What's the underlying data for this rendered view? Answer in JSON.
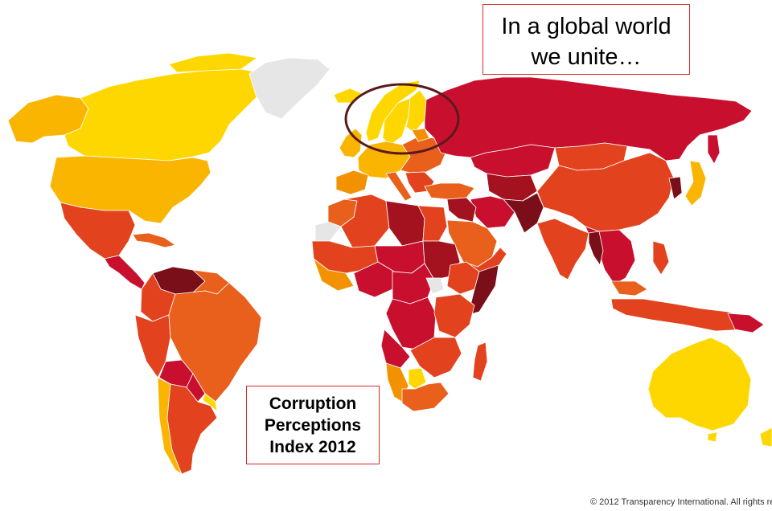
{
  "title_callout": {
    "line1": "In a global world",
    "line2": "we unite…"
  },
  "index_label": {
    "line1": "Corruption",
    "line2": "Perceptions",
    "line3": "Index 2012"
  },
  "copyright": "© 2012 Transparency International. All rights re",
  "highlight": "Scandinavia",
  "colors": {
    "very_clean": "#ffd700",
    "clean": "#f9b500",
    "moderate_clean": "#f39200",
    "moderate": "#e8601c",
    "corrupt": "#e2431e",
    "very_corrupt": "#c8102e",
    "highly_corrupt": "#a5121f",
    "extreme": "#7a0f1a",
    "no_data": "#e6e6e6",
    "ocean": "#ffffff",
    "border": "#ffffff",
    "callout_border": "#d62828",
    "highlight_ellipse": "#5a1a1a"
  }
}
